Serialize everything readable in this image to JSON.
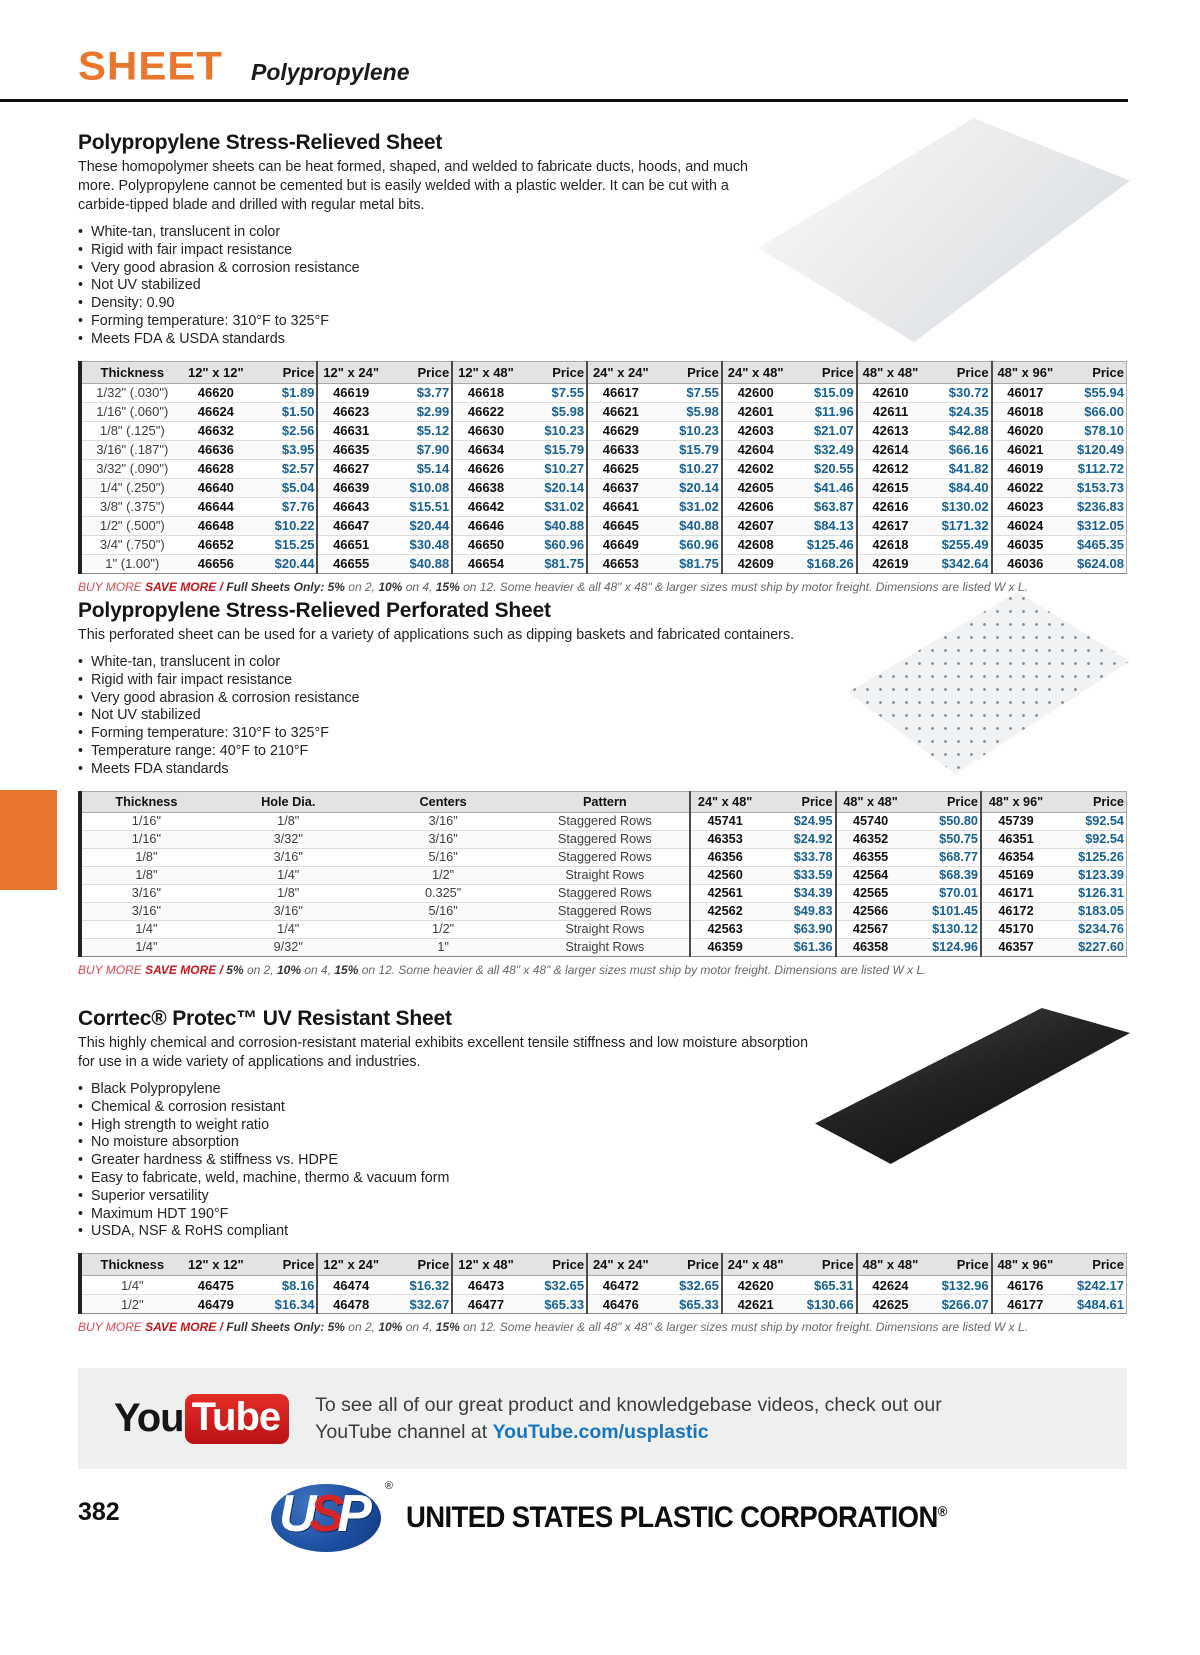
{
  "header": {
    "title": "SHEET",
    "subtitle": "Polypropylene"
  },
  "colors": {
    "accent_orange": "#E8762C",
    "price_blue": "#17608F",
    "note_red": "#C4161C",
    "link_blue": "#1B75BC"
  },
  "sections": [
    {
      "title": "Polypropylene Stress-Relieved Sheet",
      "description": "These homopolymer sheets can be heat formed, shaped, and welded to fabricate ducts, hoods, and much more. Polypropylene cannot be cemented but is easily welded with a plastic welder. It can be cut with a carbide-tipped blade and drilled with regular metal bits.",
      "bullets": [
        "White-tan, translucent in color",
        "Rigid with fair impact resistance",
        "Very good abrasion & corrosion resistance",
        "Not UV stabilized",
        "Density: 0.90",
        "Forming temperature: 310°F to 325°F",
        "Meets FDA & USDA standards"
      ],
      "table": {
        "columns": [
          "Thickness",
          "12\" x 12\"",
          "Price",
          "12\" x 24\"",
          "Price",
          "12\" x 48\"",
          "Price",
          "24\" x 24\"",
          "Price",
          "24\" x 48\"",
          "Price",
          "48\" x 48\"",
          "Price",
          "48\" x 96\"",
          "Price"
        ],
        "rows": [
          [
            "1/32\" (.030\")",
            "46620",
            "$1.89",
            "46619",
            "$3.77",
            "46618",
            "$7.55",
            "46617",
            "$7.55",
            "42600",
            "$15.09",
            "42610",
            "$30.72",
            "46017",
            "$55.94"
          ],
          [
            "1/16\" (.060\")",
            "46624",
            "$1.50",
            "46623",
            "$2.99",
            "46622",
            "$5.98",
            "46621",
            "$5.98",
            "42601",
            "$11.96",
            "42611",
            "$24.35",
            "46018",
            "$66.00"
          ],
          [
            "1/8\" (.125\")",
            "46632",
            "$2.56",
            "46631",
            "$5.12",
            "46630",
            "$10.23",
            "46629",
            "$10.23",
            "42603",
            "$21.07",
            "42613",
            "$42.88",
            "46020",
            "$78.10"
          ],
          [
            "3/16\" (.187\")",
            "46636",
            "$3.95",
            "46635",
            "$7.90",
            "46634",
            "$15.79",
            "46633",
            "$15.79",
            "42604",
            "$32.49",
            "42614",
            "$66.16",
            "46021",
            "$120.49"
          ],
          [
            "3/32\" (.090\")",
            "46628",
            "$2.57",
            "46627",
            "$5.14",
            "46626",
            "$10.27",
            "46625",
            "$10.27",
            "42602",
            "$20.55",
            "42612",
            "$41.82",
            "46019",
            "$112.72"
          ],
          [
            "1/4\" (.250\")",
            "46640",
            "$5.04",
            "46639",
            "$10.08",
            "46638",
            "$20.14",
            "46637",
            "$20.14",
            "42605",
            "$41.46",
            "42615",
            "$84.40",
            "46022",
            "$153.73"
          ],
          [
            "3/8\" (.375\")",
            "46644",
            "$7.76",
            "46643",
            "$15.51",
            "46642",
            "$31.02",
            "46641",
            "$31.02",
            "42606",
            "$63.87",
            "42616",
            "$130.02",
            "46023",
            "$236.83"
          ],
          [
            "1/2\" (.500\")",
            "46648",
            "$10.22",
            "46647",
            "$20.44",
            "46646",
            "$40.88",
            "46645",
            "$40.88",
            "42607",
            "$84.13",
            "42617",
            "$171.32",
            "46024",
            "$312.05"
          ],
          [
            "3/4\" (.750\")",
            "46652",
            "$15.25",
            "46651",
            "$30.48",
            "46650",
            "$60.96",
            "46649",
            "$60.96",
            "42608",
            "$125.46",
            "42618",
            "$255.49",
            "46035",
            "$465.35"
          ],
          [
            "1\" (1.00\")",
            "46656",
            "$20.44",
            "46655",
            "$40.88",
            "46654",
            "$81.75",
            "46653",
            "$81.75",
            "42609",
            "$168.26",
            "42619",
            "$342.64",
            "46036",
            "$624.08"
          ]
        ]
      },
      "note": {
        "buy_more": "BUY MORE",
        "save_more": "SAVE MORE",
        "separator": "/",
        "lead": "Full Sheets Only:",
        "segments": [
          [
            "b",
            "5%"
          ],
          [
            "t",
            " on 2, "
          ],
          [
            "b",
            "10%"
          ],
          [
            "t",
            " on 4, "
          ],
          [
            "b",
            "15%"
          ],
          [
            "t",
            " on 12. Some heavier & all 48\" x 48\" & larger sizes must ship by motor freight. Dimensions are listed W x L."
          ]
        ]
      }
    },
    {
      "title": "Polypropylene Stress-Relieved Perforated Sheet",
      "description": "This perforated sheet can be used for a variety of applications such as dipping baskets and fabricated containers.",
      "bullets": [
        "White-tan, translucent in color",
        "Rigid with fair impact resistance",
        "Very good abrasion & corrosion resistance",
        "Not UV stabilized",
        "Forming temperature: 310°F to 325°F",
        "Temperature range: 40°F to 210°F",
        "Meets FDA standards"
      ],
      "table": {
        "columns": [
          "Thickness",
          "Hole Dia.",
          "Centers",
          "Pattern",
          "24\" x 48\"",
          "Price",
          "48\" x 48\"",
          "Price",
          "48\" x 96\"",
          "Price"
        ],
        "rows": [
          [
            "1/16\"",
            "1/8\"",
            "3/16\"",
            "Staggered Rows",
            "45741",
            "$24.95",
            "45740",
            "$50.80",
            "45739",
            "$92.54"
          ],
          [
            "1/16\"",
            "3/32\"",
            "3/16\"",
            "Staggered Rows",
            "46353",
            "$24.92",
            "46352",
            "$50.75",
            "46351",
            "$92.54"
          ],
          [
            "1/8\"",
            "3/16\"",
            "5/16\"",
            "Staggered Rows",
            "46356",
            "$33.78",
            "46355",
            "$68.77",
            "46354",
            "$125.26"
          ],
          [
            "1/8\"",
            "1/4\"",
            "1/2\"",
            "Straight Rows",
            "42560",
            "$33.59",
            "42564",
            "$68.39",
            "45169",
            "$123.39"
          ],
          [
            "3/16\"",
            "1/8\"",
            "0.325\"",
            "Staggered Rows",
            "42561",
            "$34.39",
            "42565",
            "$70.01",
            "46171",
            "$126.31"
          ],
          [
            "3/16\"",
            "3/16\"",
            "5/16\"",
            "Staggered Rows",
            "42562",
            "$49.83",
            "42566",
            "$101.45",
            "46172",
            "$183.05"
          ],
          [
            "1/4\"",
            "1/4\"",
            "1/2\"",
            "Straight Rows",
            "42563",
            "$63.90",
            "42567",
            "$130.12",
            "45170",
            "$234.76"
          ],
          [
            "1/4\"",
            "9/32\"",
            "1\"",
            "Straight Rows",
            "46359",
            "$61.36",
            "46358",
            "$124.96",
            "46357",
            "$227.60"
          ]
        ]
      },
      "note": {
        "buy_more": "BUY MORE",
        "save_more": "SAVE MORE",
        "separator": "/",
        "lead": "",
        "segments": [
          [
            "b",
            "5%"
          ],
          [
            "t",
            " on 2, "
          ],
          [
            "b",
            "10%"
          ],
          [
            "t",
            " on 4, "
          ],
          [
            "b",
            "15%"
          ],
          [
            "t",
            " on 12. Some heavier & all 48\" x 48\" & larger sizes must ship by motor freight. Dimensions are listed W x L."
          ]
        ]
      }
    },
    {
      "title": "Corrtec® Protec™ UV Resistant Sheet",
      "description": "This highly chemical and corrosion-resistant material exhibits excellent tensile stiffness and low moisture absorption for use in a wide variety of applications and industries.",
      "bullets": [
        "Black Polypropylene",
        "Chemical & corrosion resistant",
        "High strength to weight ratio",
        "No moisture absorption",
        "Greater hardness & stiffness vs. HDPE",
        "Easy to fabricate, weld, machine, thermo & vacuum form",
        "Superior versatility",
        "Maximum HDT 190°F",
        "USDA, NSF & RoHS compliant"
      ],
      "table": {
        "columns": [
          "Thickness",
          "12\" x 12\"",
          "Price",
          "12\" x 24\"",
          "Price",
          "12\" x 48\"",
          "Price",
          "24\" x 24\"",
          "Price",
          "24\" x 48\"",
          "Price",
          "48\" x 48\"",
          "Price",
          "48\" x 96\"",
          "Price"
        ],
        "rows": [
          [
            "1/4\"",
            "46475",
            "$8.16",
            "46474",
            "$16.32",
            "46473",
            "$32.65",
            "46472",
            "$32.65",
            "42620",
            "$65.31",
            "42624",
            "$132.96",
            "46176",
            "$242.17"
          ],
          [
            "1/2\"",
            "46479",
            "$16.34",
            "46478",
            "$32.67",
            "46477",
            "$65.33",
            "46476",
            "$65.33",
            "42621",
            "$130.66",
            "42625",
            "$266.07",
            "46177",
            "$484.61"
          ]
        ]
      },
      "note": {
        "buy_more": "BUY MORE",
        "save_more": "SAVE MORE",
        "separator": "/",
        "lead": "Full Sheets Only:",
        "segments": [
          [
            "b",
            "5%"
          ],
          [
            "t",
            " on 2, "
          ],
          [
            "b",
            "10%"
          ],
          [
            "t",
            " on 4, "
          ],
          [
            "b",
            "15%"
          ],
          [
            "t",
            " on 12. Some heavier & all 48\" x 48\" & larger sizes must ship by motor freight. Dimensions are listed W x L."
          ]
        ]
      }
    }
  ],
  "youtube": {
    "logo_you": "You",
    "logo_tube": "Tube",
    "line1": "To see all of our great product and knowledgebase videos, check out our",
    "line2_prefix": "YouTube channel at ",
    "link": "YouTube.com/usplastic"
  },
  "footer": {
    "page_number": "382",
    "logo_text_u": "U",
    "logo_text_s": "S",
    "logo_text_p": "P",
    "logo_reg": "®",
    "company": "UNITED STATES PLASTIC CORPORATION",
    "company_reg": "®"
  }
}
